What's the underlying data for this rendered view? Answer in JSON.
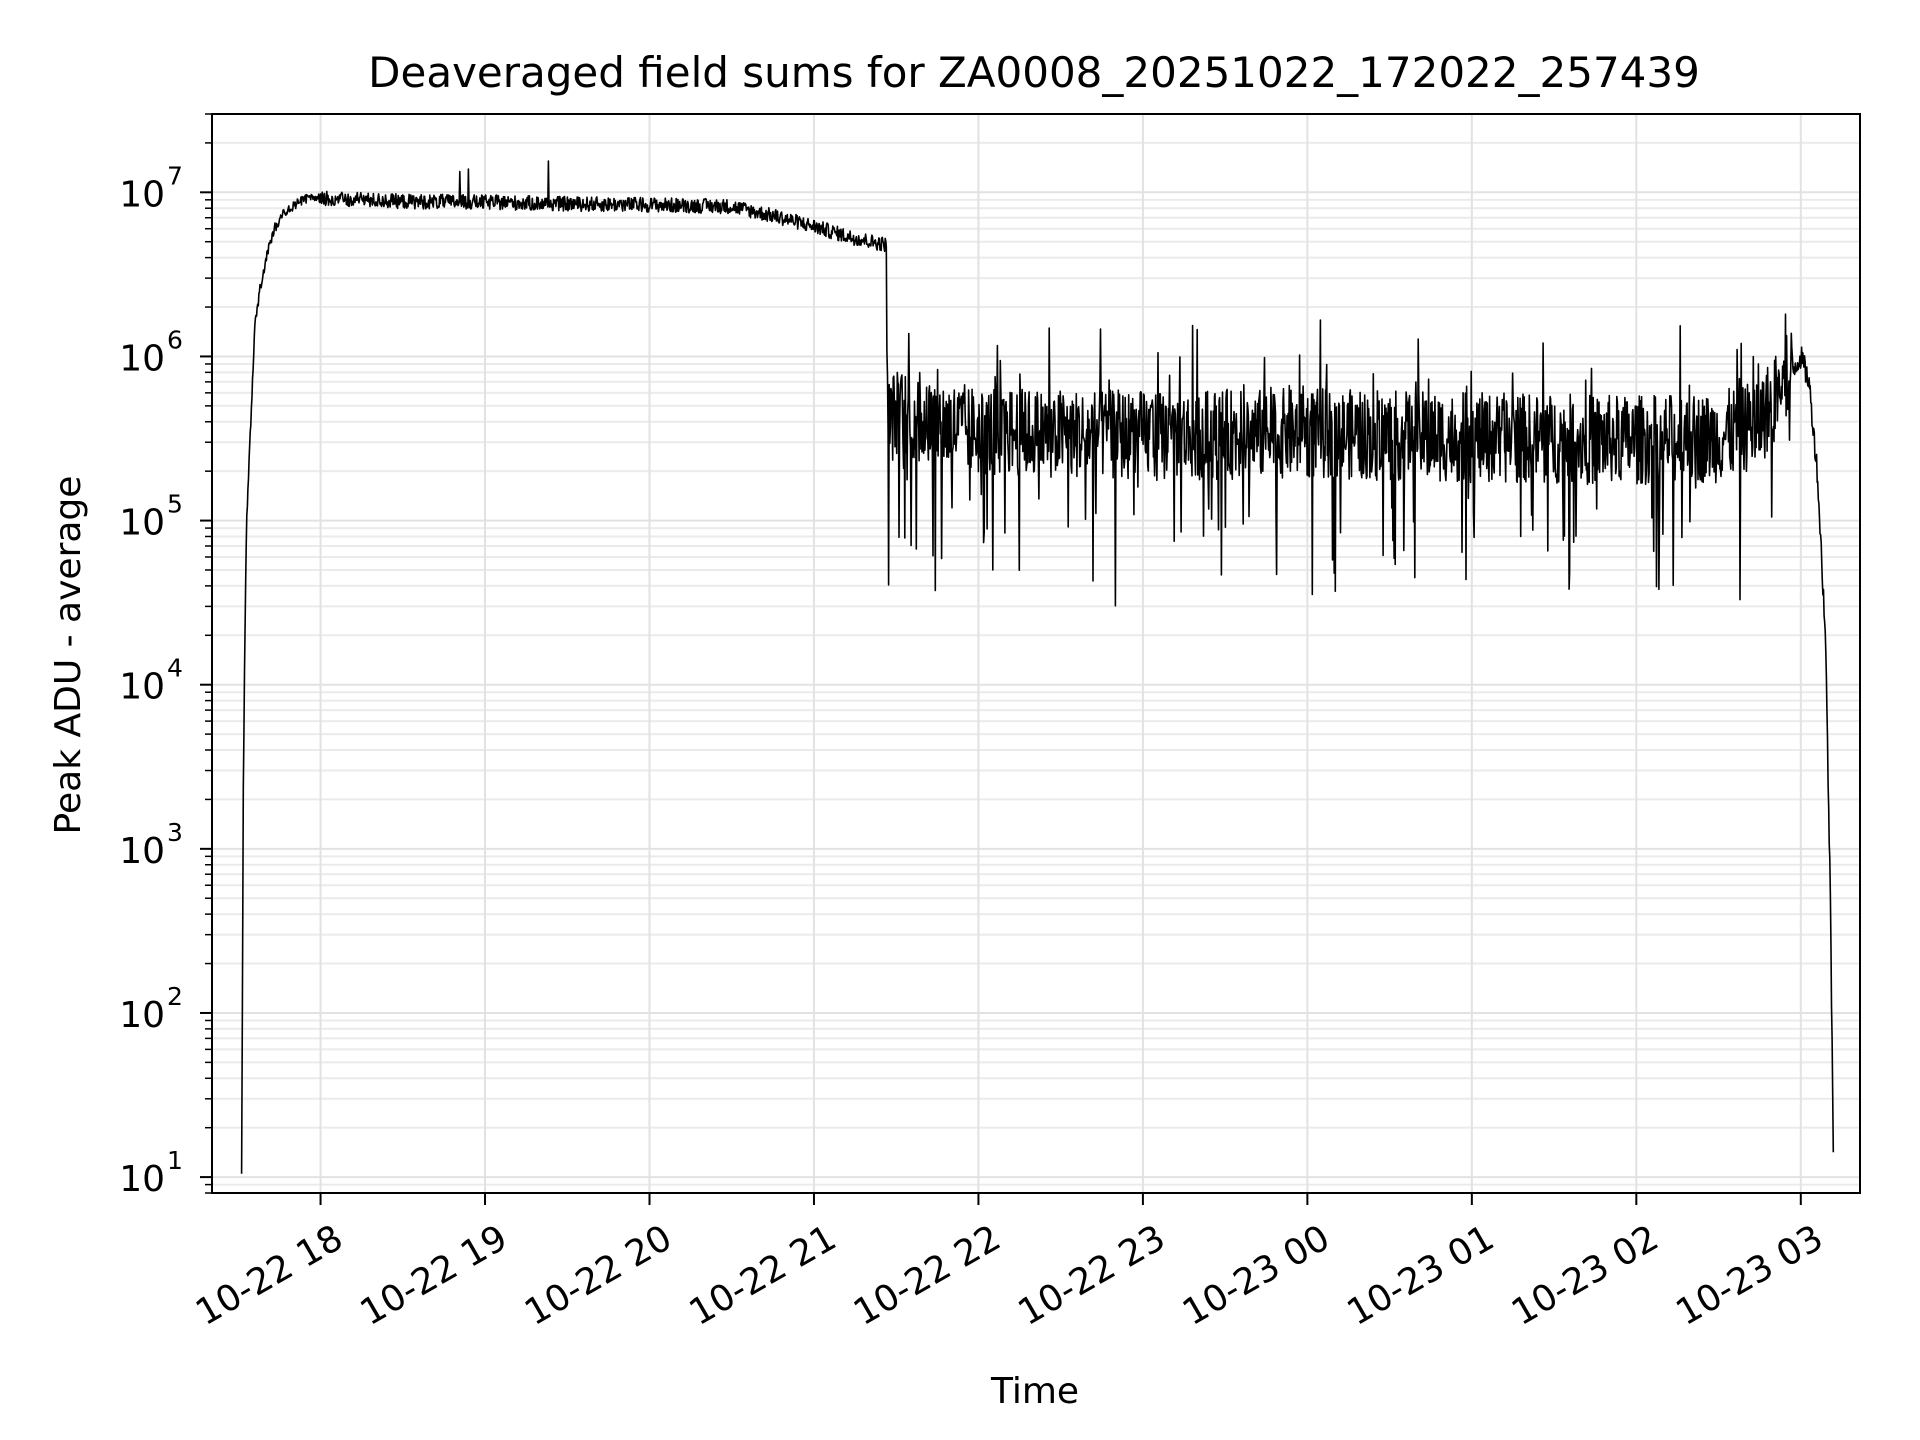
{
  "chart_data": {
    "type": "line",
    "title": "Deaveraged field sums for ZA0008_20251022_172022_257439",
    "xlabel": "Time",
    "ylabel": "Peak ADU - average",
    "yscale": "log",
    "ylim": [
      8,
      30000000
    ],
    "grid": true,
    "x_units": "hours after 10-22 18:00",
    "xlim": [
      -0.66,
      9.36
    ],
    "x_ticks": [
      {
        "value": 0,
        "label": "10-22 18"
      },
      {
        "value": 1,
        "label": "10-22 19"
      },
      {
        "value": 2,
        "label": "10-22 20"
      },
      {
        "value": 3,
        "label": "10-22 21"
      },
      {
        "value": 4,
        "label": "10-22 22"
      },
      {
        "value": 5,
        "label": "10-22 23"
      },
      {
        "value": 6,
        "label": "10-23 00"
      },
      {
        "value": 7,
        "label": "10-23 01"
      },
      {
        "value": 8,
        "label": "10-23 02"
      },
      {
        "value": 9,
        "label": "10-23 03"
      }
    ],
    "y_ticks": [
      {
        "value": 10,
        "base": "10",
        "exp": "1"
      },
      {
        "value": 100,
        "base": "10",
        "exp": "2"
      },
      {
        "value": 1000,
        "base": "10",
        "exp": "3"
      },
      {
        "value": 10000,
        "base": "10",
        "exp": "4"
      },
      {
        "value": 100000,
        "base": "10",
        "exp": "5"
      },
      {
        "value": 1000000,
        "base": "10",
        "exp": "6"
      },
      {
        "value": 10000000,
        "base": "10",
        "exp": "7"
      }
    ],
    "series": [
      {
        "name": "Peak ADU - average",
        "color": "#000000",
        "description": "Envelope of noisy time series",
        "x": [
          -0.48,
          -0.47,
          -0.46,
          -0.45,
          -0.42,
          -0.4,
          -0.37,
          -0.33,
          -0.28,
          -0.22,
          -0.15,
          -0.08,
          0.0,
          0.5,
          1.0,
          1.5,
          2.0,
          2.5,
          2.8,
          3.0,
          3.2,
          3.35,
          3.44,
          3.45,
          3.5,
          3.7,
          4.0,
          5.0,
          6.0,
          7.0,
          8.0,
          8.5,
          8.75,
          8.9,
          9.0,
          9.05,
          9.1,
          9.15,
          9.18,
          9.2
        ],
        "center": [
          10,
          2000,
          20000,
          100000,
          500000,
          1500000,
          2500000,
          4000000,
          6000000,
          7500000,
          8500000,
          9200000,
          9200000,
          8800000,
          8700000,
          8500000,
          8400000,
          8200000,
          7000000,
          6200000,
          5400000,
          5000000,
          4800000,
          400000,
          450000,
          400000,
          350000,
          330000,
          340000,
          320000,
          310000,
          320000,
          400000,
          700000,
          1000000,
          700000,
          200000,
          20000,
          500,
          10
        ]
      }
    ]
  }
}
